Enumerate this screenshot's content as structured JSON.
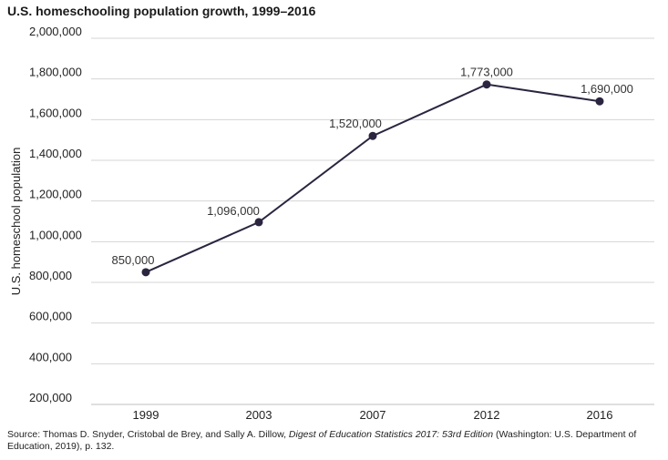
{
  "title": "U.S. homeschooling population growth, 1999–2016",
  "chart_data": {
    "type": "line",
    "x": [
      "1999",
      "2003",
      "2007",
      "2012",
      "2016"
    ],
    "series": [
      {
        "values": [
          850000,
          1096000,
          1520000,
          1773000,
          1690000
        ]
      }
    ],
    "data_labels": [
      "850,000",
      "1,096,000",
      "1,520,000",
      "1,773,000",
      "1,690,000"
    ],
    "ylabel": "U.S. homeschool population",
    "xlabel": "",
    "ylim": [
      200000,
      2000000
    ],
    "yticks": [
      200000,
      400000,
      600000,
      800000,
      1000000,
      1200000,
      1400000,
      1600000,
      1800000,
      2000000
    ],
    "ytick_labels": [
      "200,000",
      "400,000",
      "600,000",
      "800,000",
      "1,000,000",
      "1,200,000",
      "1,400,000",
      "1,600,000",
      "1,800,000",
      "2,000,000"
    ],
    "grid": true,
    "line_color": "#2b2540",
    "grid_color": "#d4d4d4"
  },
  "source": {
    "prefix": "Source: Thomas D. Snyder, Cristobal de Brey, and Sally A. Dillow, ",
    "italic": "Digest of Education Statistics 2017: 53rd Edition",
    "suffix": " (Washington: U.S. Department of Education, 2019), p. 132."
  }
}
